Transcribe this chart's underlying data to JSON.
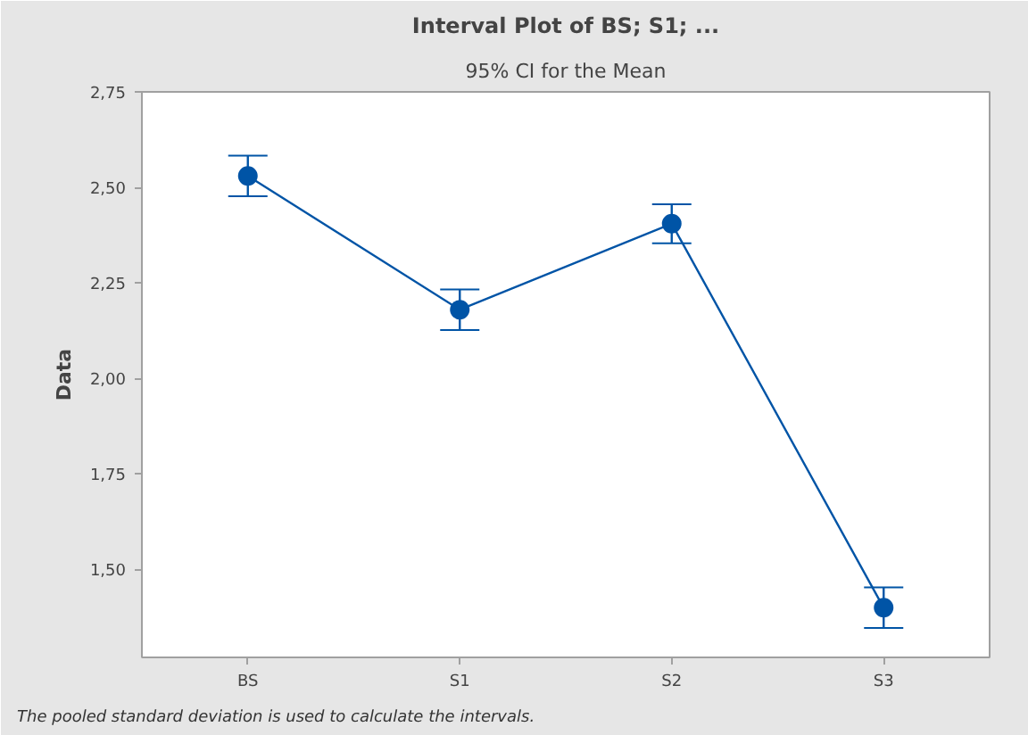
{
  "chart_data": {
    "type": "line",
    "title": "Interval Plot of BS; S1; ...",
    "subtitle": "95% CI for the Mean",
    "ylabel": "Data",
    "categories": [
      "BS",
      "S1",
      "S2",
      "S3"
    ],
    "series": [
      {
        "color": "#0054a6",
        "values": [
          2.53,
          2.18,
          2.405,
          1.4
        ],
        "errors": [
          0.053,
          0.053,
          0.051,
          0.053
        ]
      }
    ],
    "ylim": [
      1.27,
      2.75
    ],
    "yticks": [
      {
        "value": 1.5,
        "label": "1,50"
      },
      {
        "value": 1.75,
        "label": "1,75"
      },
      {
        "value": 2.0,
        "label": "2,00"
      },
      {
        "value": 2.25,
        "label": "2,25"
      },
      {
        "value": 2.5,
        "label": "2,50"
      },
      {
        "value": 2.75,
        "label": "2,75"
      }
    ],
    "marker": "circle",
    "grid": false,
    "annotations": [
      "The pooled standard deviation is used to calculate the intervals."
    ]
  }
}
